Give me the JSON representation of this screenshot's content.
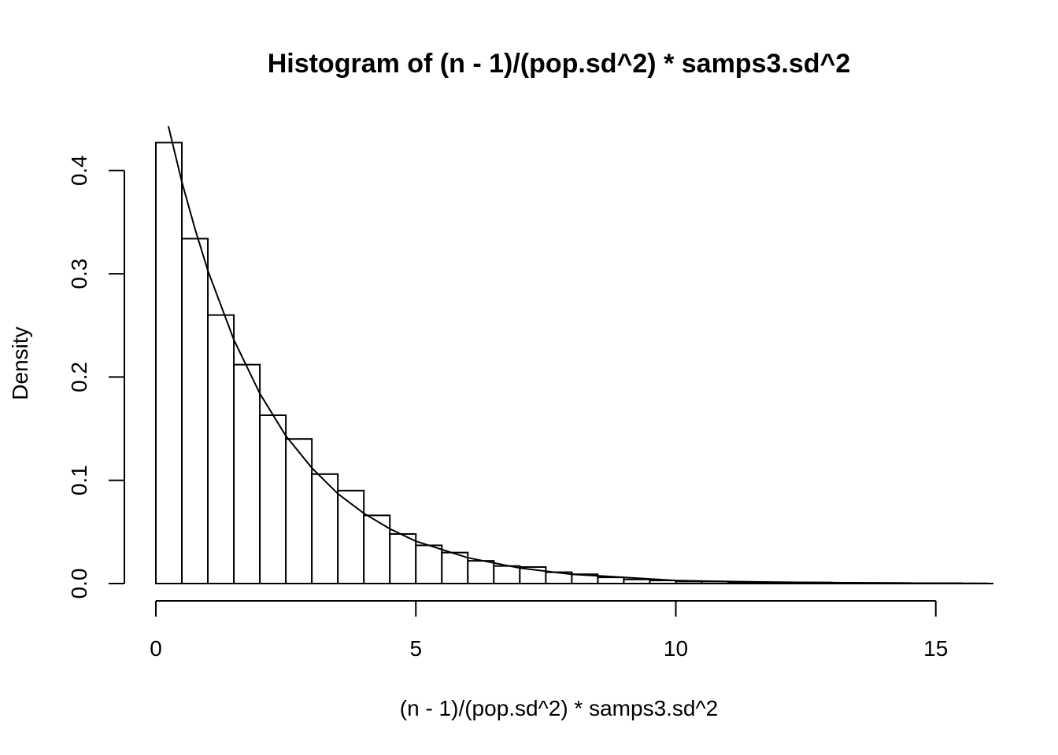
{
  "chart_data": {
    "type": "bar",
    "title": "Histogram of (n - 1)/(pop.sd^2) * samps3.sd^2",
    "xlabel": "(n - 1)/(pop.sd^2) * samps3.sd^2",
    "ylabel": "Density",
    "xlim": [
      0,
      16
    ],
    "ylim": [
      0,
      0.43
    ],
    "x_ticks": [
      "0",
      "5",
      "10",
      "15"
    ],
    "x_tick_values": [
      0,
      5,
      10,
      15
    ],
    "y_ticks": [
      "0.0",
      "0.1",
      "0.2",
      "0.3",
      "0.4"
    ],
    "y_tick_values": [
      0,
      0.1,
      0.2,
      0.3,
      0.4
    ],
    "bin_width": 0.5,
    "bin_starts": [
      0,
      0.5,
      1,
      1.5,
      2,
      2.5,
      3,
      3.5,
      4,
      4.5,
      5,
      5.5,
      6,
      6.5,
      7,
      7.5,
      8,
      8.5,
      9,
      9.5,
      10,
      10.5,
      11,
      11.5,
      12,
      12.5,
      13,
      13.5,
      14,
      14.5,
      15
    ],
    "values": [
      0.427,
      0.334,
      0.26,
      0.212,
      0.163,
      0.14,
      0.106,
      0.09,
      0.066,
      0.048,
      0.037,
      0.03,
      0.022,
      0.017,
      0.016,
      0.011,
      0.009,
      0.006,
      0.004,
      0.003,
      0.002,
      0.002,
      0.001,
      0.001,
      0.001,
      0.001,
      0.0005,
      0.0005,
      0.0005,
      0.0003,
      0.0003
    ],
    "curve": {
      "x": [
        0.24,
        0.5,
        0.75,
        1,
        1.5,
        2,
        2.5,
        3,
        3.5,
        4,
        4.5,
        5,
        6,
        7,
        8,
        9,
        10,
        11,
        12,
        13,
        14,
        15,
        16
      ],
      "y": [
        0.443,
        0.389,
        0.344,
        0.303,
        0.236,
        0.184,
        0.143,
        0.112,
        0.087,
        0.068,
        0.053,
        0.041,
        0.025,
        0.015,
        0.009,
        0.006,
        0.003,
        0.002,
        0.0013,
        0.0008,
        0.0005,
        0.0003,
        0.0002
      ]
    },
    "grid": false,
    "legend": "none"
  }
}
